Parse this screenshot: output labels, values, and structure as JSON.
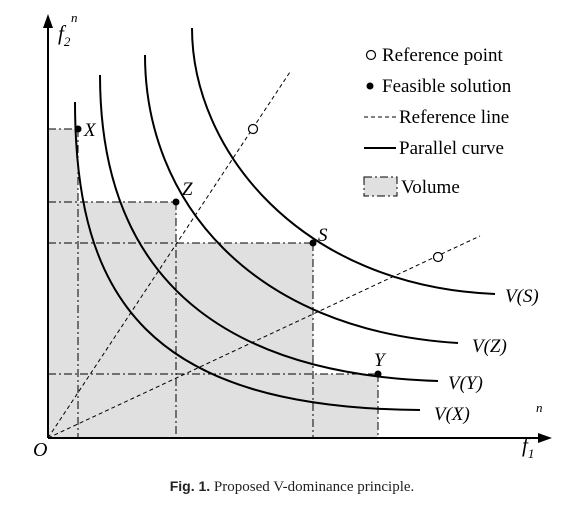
{
  "axes": {
    "y_label": "f",
    "y_sub": "2",
    "y_sup": "n",
    "x_label": "f",
    "x_sub": "1",
    "x_sup": "n",
    "origin": "O"
  },
  "points": {
    "X": "X",
    "Z": "Z",
    "S": "S",
    "Y": "Y"
  },
  "curves": {
    "VS": "V(S)",
    "VZ": "V(Z)",
    "VY": "V(Y)",
    "VX": "V(X)"
  },
  "legend": {
    "reference_point": "Reference point",
    "feasible_solution": "Feasible solution",
    "reference_line": "Reference line",
    "parallel_curve": "Parallel curve",
    "volume": "Volume"
  },
  "caption": {
    "label": "Fig. 1.",
    "text": "Proposed V-dominance principle."
  },
  "colors": {
    "volume_fill": "#e0e0e0",
    "ink": "#000000"
  }
}
